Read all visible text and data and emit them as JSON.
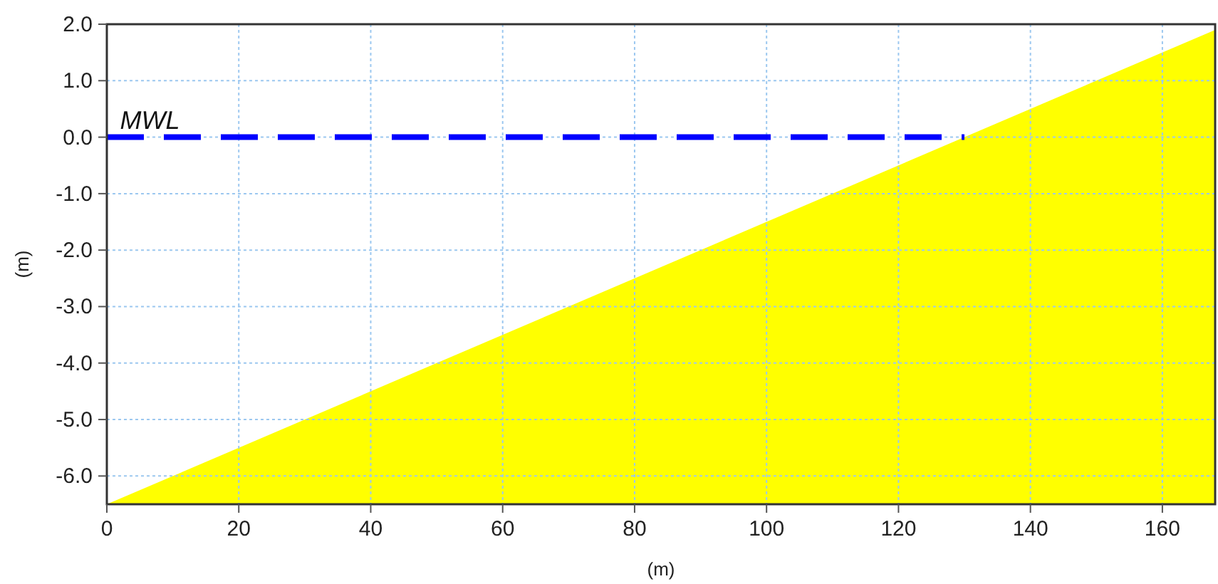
{
  "chart_data": {
    "type": "area",
    "xlabel": "(m)",
    "ylabel": "(m)",
    "series": [
      {
        "color": "#ffff00",
        "x": [
          0,
          168
        ],
        "values": [
          -6.5,
          1.9
        ]
      },
      {
        "type": "line",
        "color": "#0000ff",
        "x": [
          0,
          130
        ],
        "values": [
          0,
          0
        ],
        "line_style": "dashed"
      }
    ],
    "xlim": [
      0,
      168
    ],
    "ylim": [
      -6.5,
      2.0
    ],
    "xticks": [
      0,
      20,
      40,
      60,
      80,
      100,
      120,
      140,
      160
    ],
    "yticks": [
      {
        "value": -6,
        "label": "-6.0"
      },
      {
        "value": -5,
        "label": "-5.0"
      },
      {
        "value": -4,
        "label": "-4.0"
      },
      {
        "value": -3,
        "label": "-3.0"
      },
      {
        "value": -2,
        "label": "-2.0"
      },
      {
        "value": -1,
        "label": "-1.0"
      },
      {
        "value": 0,
        "label": "0.0"
      },
      {
        "value": 1,
        "label": "1.0"
      },
      {
        "value": 2,
        "label": "2.0"
      }
    ],
    "grid": true,
    "annotations": [
      {
        "text": "MWL",
        "x": 2,
        "y": 0
      }
    ]
  }
}
